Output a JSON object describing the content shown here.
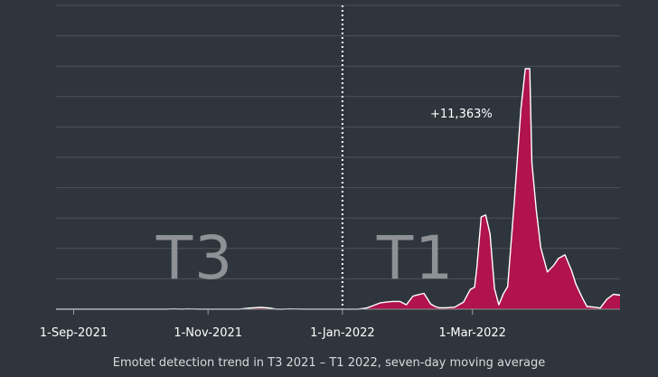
{
  "chart_data": {
    "type": "area",
    "caption": "Emotet detection trend in T3 2021 – T1 2022, seven-day moving average",
    "x_tick_labels": [
      "1-Sep-2021",
      "1-Nov-2021",
      "1-Jan-2022",
      "1-Mar-2022"
    ],
    "period_labels": [
      "T3",
      "T1"
    ],
    "annotation": "+11,363%",
    "divider_date": "2022-01-01",
    "x_range": [
      "2021-08-24",
      "2022-05-07"
    ],
    "y_range": [
      0,
      100
    ],
    "grid": true,
    "colors": {
      "background": "#2f353c",
      "fill": "#b0134e",
      "stroke": "#ffffff",
      "grid": "#4d535a",
      "period_label": "#8e9297"
    },
    "series": {
      "x": [
        "2021-10-13",
        "2021-10-16",
        "2021-10-20",
        "2021-10-23",
        "2021-10-28",
        "2021-11-15",
        "2021-11-20",
        "2021-11-25",
        "2021-11-29",
        "2021-12-02",
        "2021-12-05",
        "2021-12-08",
        "2021-12-15",
        "2022-01-08",
        "2022-01-12",
        "2022-01-15",
        "2022-01-18",
        "2022-01-21",
        "2022-01-24",
        "2022-01-27",
        "2022-01-30",
        "2022-02-02",
        "2022-02-04",
        "2022-02-07",
        "2022-02-10",
        "2022-02-12",
        "2022-02-14",
        "2022-02-17",
        "2022-02-21",
        "2022-02-25",
        "2022-02-28",
        "2022-03-02",
        "2022-03-03",
        "2022-03-05",
        "2022-03-07",
        "2022-03-09",
        "2022-03-11",
        "2022-03-13",
        "2022-03-15",
        "2022-03-17",
        "2022-03-20",
        "2022-03-23",
        "2022-03-25",
        "2022-03-27",
        "2022-03-28",
        "2022-03-30",
        "2022-04-01",
        "2022-04-04",
        "2022-04-07",
        "2022-04-09",
        "2022-04-12",
        "2022-04-15",
        "2022-04-17",
        "2022-04-20",
        "2022-04-22",
        "2022-04-25",
        "2022-04-28",
        "2022-05-01",
        "2022-05-04",
        "2022-05-07"
      ],
      "y": [
        0,
        0.1,
        0,
        0.1,
        0,
        0,
        0.4,
        0.6,
        0.4,
        0,
        0,
        0.1,
        0,
        0,
        0.4,
        1.2,
        2.1,
        2.4,
        2.6,
        2.6,
        1.5,
        4.4,
        4.8,
        5.3,
        1.8,
        0.9,
        0.5,
        0.5,
        0.7,
        2.4,
        6.6,
        7.4,
        14,
        30.9,
        31.6,
        25.2,
        6.9,
        1.5,
        5.1,
        7.6,
        35.9,
        67,
        80.6,
        80.6,
        49,
        33,
        20.6,
        12.5,
        14.8,
        17,
        18.2,
        12.9,
        8.3,
        3.6,
        0.9,
        0.7,
        0.4,
        3.3,
        5,
        4.7
      ]
    }
  }
}
